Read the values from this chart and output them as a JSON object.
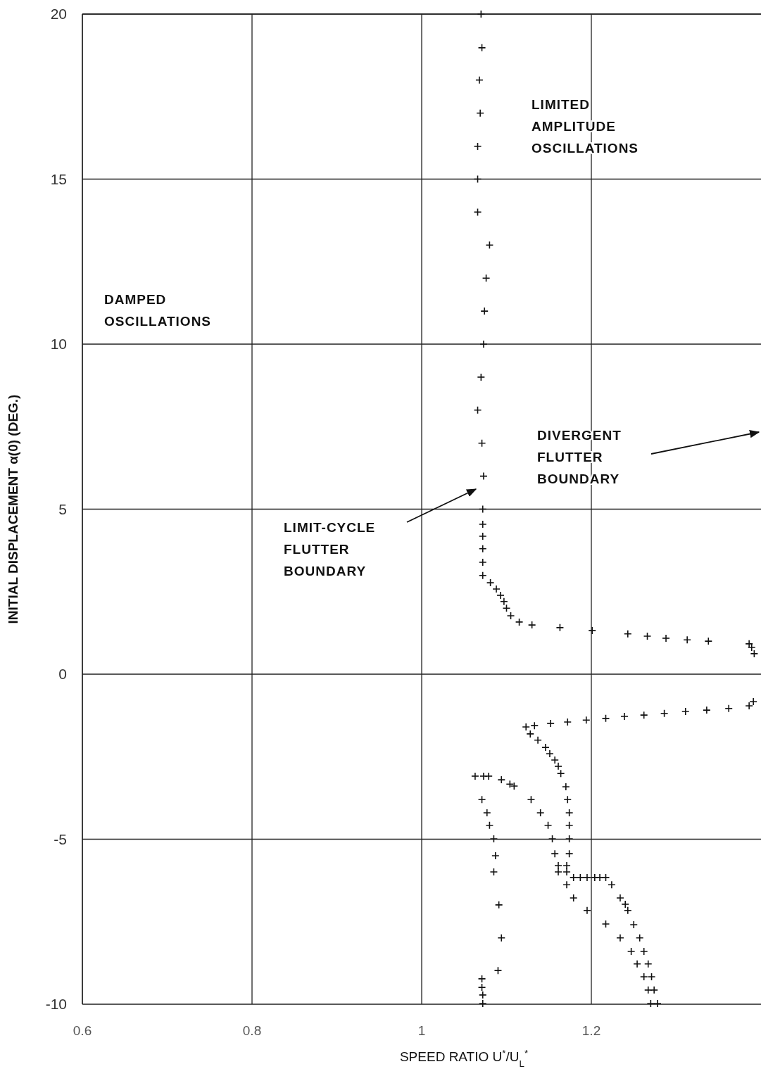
{
  "chart_data": {
    "type": "scatter",
    "xlabel": "SPEED RATIO U$^{*}$/U$_{L}$$^{*}$",
    "ylabel": "INITIAL DISPLACEMENT α(0) (DEG.)",
    "xlim": [
      0.6,
      1.4
    ],
    "xticks": [
      0.6,
      0.8,
      1.0,
      1.2
    ],
    "ylim": [
      -10,
      20
    ],
    "yticks": [
      -10,
      -5,
      0,
      5,
      10,
      15,
      20
    ],
    "grid": true,
    "marker": "cross",
    "annotations": [
      "LIMITED AMPLITUDE OSCILLATIONS",
      "DAMPED OSCILLATIONS",
      "LIMIT-CYCLE FLUTTER BOUNDARY",
      "DIVERGENT FLUTTER BOUNDARY"
    ],
    "series": [
      {
        "color": "#111111",
        "x": [
          1.07,
          1.071,
          1.068,
          1.069,
          1.066,
          1.066,
          1.066,
          1.08,
          1.076,
          1.074,
          1.073,
          1.07,
          1.066,
          1.071,
          1.073,
          1.072,
          1.072,
          1.072,
          1.072,
          1.072,
          1.072,
          1.081,
          1.088,
          1.093,
          1.097,
          1.1,
          1.105,
          1.115,
          1.13,
          1.163,
          1.201,
          1.243,
          1.266,
          1.288,
          1.313,
          1.338,
          1.386,
          1.389,
          1.392
        ],
        "values": [
          20,
          18.98,
          18.0,
          17.0,
          15.99,
          15.0,
          14.0,
          13.0,
          12.0,
          11.0,
          10.0,
          9.0,
          8.0,
          7.0,
          6.0,
          5.0,
          4.54,
          4.18,
          3.8,
          3.39,
          2.99,
          2.77,
          2.58,
          2.39,
          2.2,
          2.0,
          1.77,
          1.58,
          1.49,
          1.41,
          1.32,
          1.22,
          1.15,
          1.09,
          1.04,
          1.0,
          0.92,
          0.81,
          0.62
        ]
      },
      {
        "color": "#111111",
        "x": [
          1.391,
          1.386,
          1.362,
          1.336,
          1.311,
          1.286,
          1.262,
          1.239,
          1.217,
          1.194,
          1.172,
          1.152,
          1.133,
          1.123,
          1.128,
          1.137,
          1.146,
          1.151,
          1.157,
          1.161,
          1.164,
          1.17,
          1.172,
          1.174,
          1.174,
          1.174,
          1.174,
          1.171,
          1.171,
          1.171,
          1.179,
          1.187,
          1.195,
          1.204,
          1.21,
          1.217,
          1.224,
          1.234,
          1.24,
          1.243,
          1.25,
          1.257,
          1.262,
          1.267,
          1.271,
          1.274,
          1.278
        ],
        "values": [
          -0.83,
          -0.96,
          -1.04,
          -1.09,
          -1.13,
          -1.19,
          -1.24,
          -1.28,
          -1.34,
          -1.39,
          -1.45,
          -1.49,
          -1.56,
          -1.6,
          -1.81,
          -2.0,
          -2.22,
          -2.41,
          -2.6,
          -2.79,
          -3.01,
          -3.41,
          -3.8,
          -4.2,
          -4.58,
          -4.99,
          -5.44,
          -5.8,
          -5.99,
          -6.38,
          -6.16,
          -6.16,
          -6.16,
          -6.16,
          -6.16,
          -6.16,
          -6.38,
          -6.78,
          -6.97,
          -7.16,
          -7.59,
          -7.99,
          -8.4,
          -8.78,
          -9.17,
          -9.57,
          -9.98
        ]
      },
      {
        "color": "#111111",
        "x": [
          1.063,
          1.073,
          1.079,
          1.094,
          1.104,
          1.109,
          1.129,
          1.14,
          1.149,
          1.154,
          1.157,
          1.161,
          1.161,
          1.179,
          1.195,
          1.217,
          1.234,
          1.247,
          1.254,
          1.262,
          1.267,
          1.27
        ],
        "values": [
          -3.09,
          -3.09,
          -3.09,
          -3.2,
          -3.33,
          -3.39,
          -3.8,
          -4.2,
          -4.58,
          -4.99,
          -5.44,
          -5.8,
          -5.99,
          -6.78,
          -7.16,
          -7.57,
          -7.99,
          -8.4,
          -8.78,
          -9.17,
          -9.57,
          -9.98
        ]
      },
      {
        "color": "#111111",
        "x": [
          1.071,
          1.077,
          1.08,
          1.085,
          1.087,
          1.085,
          1.091,
          1.094,
          1.09,
          1.071,
          1.071,
          1.072,
          1.072
        ],
        "values": [
          -3.8,
          -4.2,
          -4.58,
          -4.99,
          -5.5,
          -5.99,
          -6.99,
          -7.99,
          -8.98,
          -9.23,
          -9.49,
          -9.72,
          -9.98
        ]
      }
    ]
  }
}
